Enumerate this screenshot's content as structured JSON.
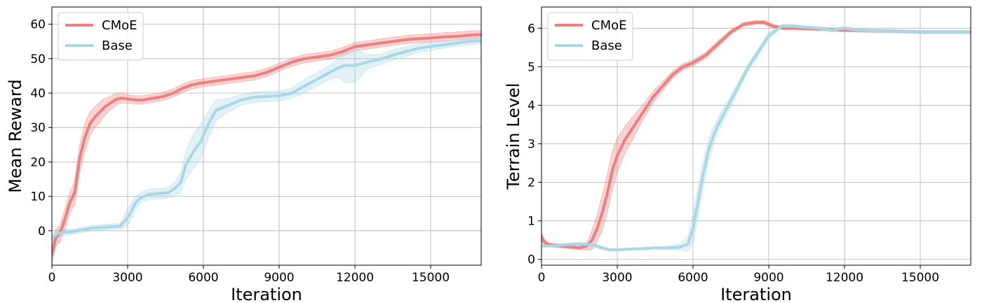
{
  "chart_data": [
    {
      "type": "line",
      "xlabel": "Iteration",
      "ylabel": "Mean Reward",
      "xlim": [
        0,
        17000
      ],
      "ylim": [
        -10,
        65
      ],
      "xticks": [
        0,
        3000,
        6000,
        9000,
        12000,
        15000
      ],
      "yticks": [
        0,
        10,
        20,
        30,
        40,
        50,
        60
      ],
      "grid": true,
      "legend": "top-left",
      "series": [
        {
          "name": "CMoE",
          "color": "#ef7f7f",
          "x": [
            0,
            150,
            300,
            500,
            700,
            900,
            1100,
            1300,
            1500,
            1700,
            1900,
            2100,
            2300,
            2500,
            2700,
            2800,
            3000,
            3300,
            3600,
            4000,
            4400,
            4800,
            5200,
            5600,
            6000,
            6500,
            7000,
            7500,
            8000,
            8500,
            9000,
            9500,
            10000,
            10500,
            11000,
            11500,
            12000,
            12500,
            13000,
            13500,
            14000,
            14500,
            15000,
            15500,
            16000,
            16500,
            17000
          ],
          "y": [
            -7,
            -2,
            -1,
            3,
            8,
            11,
            21,
            27,
            31,
            33,
            34.5,
            36,
            37,
            38,
            38.5,
            38.5,
            38.3,
            38,
            38,
            38.5,
            39,
            40,
            41.5,
            42.5,
            43,
            43.5,
            44,
            44.5,
            45,
            46,
            47.5,
            49,
            50,
            50.5,
            51,
            52,
            53.5,
            54,
            54.5,
            55,
            55.5,
            55.8,
            56,
            56.3,
            56.5,
            56.8,
            57
          ],
          "band": [
            3,
            2.5,
            2.5,
            3,
            3,
            3.5,
            4,
            4,
            3.5,
            3,
            3,
            2.5,
            2,
            1.8,
            1.5,
            1.5,
            1.2,
            1.2,
            1.2,
            1.2,
            1.2,
            1.2,
            1.2,
            1.2,
            1.2,
            1.2,
            1.2,
            1.2,
            1.2,
            1.2,
            1.2,
            1.2,
            1.2,
            1.2,
            1.2,
            1.2,
            1.2,
            1.2,
            1.2,
            1.2,
            1.2,
            1.2,
            1.2,
            1.2,
            1.2,
            1.2,
            1.2
          ]
        },
        {
          "name": "Base",
          "color": "#a8d8e6",
          "x": [
            0,
            200,
            400,
            800,
            1200,
            1600,
            2000,
            2400,
            2700,
            2900,
            3100,
            3300,
            3500,
            3800,
            4200,
            4600,
            4900,
            5100,
            5300,
            5600,
            5900,
            6200,
            6500,
            7000,
            7500,
            8000,
            8500,
            9000,
            9500,
            10000,
            10500,
            11000,
            11400,
            11600,
            12000,
            12500,
            13000,
            13500,
            14000,
            14500,
            15000,
            15500,
            16000,
            16500,
            17000
          ],
          "y": [
            -2,
            -1,
            -0.5,
            -0.3,
            0.3,
            0.8,
            1,
            1.2,
            1.3,
            3,
            5,
            8,
            9.5,
            10.5,
            10.8,
            11,
            12.5,
            14,
            19,
            23,
            26,
            31,
            35,
            36.5,
            38,
            38.8,
            39,
            39.2,
            40,
            42,
            44,
            46,
            47.5,
            48,
            48,
            49,
            49.8,
            51,
            52,
            53,
            53.5,
            54,
            54.5,
            55,
            55.2
          ],
          "band": [
            1,
            1,
            1,
            0.8,
            0.8,
            0.8,
            0.8,
            0.8,
            0.8,
            2,
            2.5,
            2,
            1.5,
            1.5,
            1.5,
            1.5,
            2,
            3,
            4,
            5,
            5,
            4,
            3,
            2,
            1.5,
            1.5,
            1.5,
            1.5,
            1.5,
            2,
            2,
            2,
            3,
            5,
            5,
            2,
            1.5,
            1.5,
            1.5,
            1.2,
            1.2,
            1,
            1,
            1,
            1
          ]
        }
      ]
    },
    {
      "type": "line",
      "xlabel": "Iteration",
      "ylabel": "Terrain Level",
      "xlim": [
        0,
        17000
      ],
      "ylim": [
        -0.15,
        6.55
      ],
      "xticks": [
        0,
        3000,
        6000,
        9000,
        12000,
        15000
      ],
      "yticks": [
        0,
        1,
        2,
        3,
        4,
        5,
        6
      ],
      "grid": true,
      "legend": "top-left",
      "series": [
        {
          "name": "CMoE",
          "color": "#ef7f7f",
          "x": [
            0,
            100,
            300,
            700,
            1100,
            1500,
            1800,
            2000,
            2200,
            2400,
            2600,
            2800,
            3000,
            3300,
            3600,
            4000,
            4400,
            4800,
            5200,
            5600,
            6000,
            6500,
            7000,
            7500,
            8000,
            8500,
            8800,
            9200,
            9600,
            10000,
            11000,
            12000,
            13000,
            14000,
            15000,
            16000,
            17000
          ],
          "y": [
            0.6,
            0.45,
            0.38,
            0.35,
            0.33,
            0.3,
            0.35,
            0.5,
            0.8,
            1.2,
            1.7,
            2.3,
            2.7,
            3.1,
            3.4,
            3.8,
            4.2,
            4.5,
            4.8,
            5.0,
            5.1,
            5.3,
            5.6,
            5.9,
            6.1,
            6.15,
            6.15,
            6.05,
            6.0,
            6.0,
            5.98,
            5.95,
            5.93,
            5.92,
            5.9,
            5.9,
            5.9
          ],
          "band": [
            0.1,
            0.08,
            0.05,
            0.05,
            0.05,
            0.05,
            0.1,
            0.25,
            0.35,
            0.45,
            0.5,
            0.5,
            0.45,
            0.35,
            0.3,
            0.2,
            0.15,
            0.12,
            0.1,
            0.08,
            0.08,
            0.08,
            0.08,
            0.06,
            0.05,
            0.05,
            0.05,
            0.05,
            0.04,
            0.04,
            0.04,
            0.04,
            0.04,
            0.04,
            0.04,
            0.04,
            0.04
          ]
        },
        {
          "name": "Base",
          "color": "#a8d8e6",
          "x": [
            0,
            500,
            1000,
            1500,
            2000,
            2400,
            2700,
            3000,
            3500,
            4000,
            4500,
            5000,
            5500,
            5800,
            6000,
            6200,
            6400,
            6600,
            6800,
            7000,
            7400,
            7800,
            8200,
            8600,
            9000,
            9500,
            10000,
            10500,
            11000,
            11500,
            12000,
            12500,
            13000,
            14000,
            15000,
            16000,
            17000
          ],
          "y": [
            0.35,
            0.35,
            0.38,
            0.4,
            0.38,
            0.3,
            0.25,
            0.25,
            0.27,
            0.28,
            0.3,
            0.3,
            0.32,
            0.4,
            0.8,
            1.5,
            2.2,
            2.8,
            3.2,
            3.5,
            4.0,
            4.5,
            5.0,
            5.4,
            5.8,
            6.05,
            6.05,
            6.02,
            6.0,
            5.95,
            6.0,
            5.95,
            5.93,
            5.92,
            5.9,
            5.9,
            5.9
          ],
          "band": [
            0.03,
            0.03,
            0.04,
            0.05,
            0.05,
            0.04,
            0.03,
            0.03,
            0.03,
            0.03,
            0.03,
            0.04,
            0.08,
            0.2,
            0.4,
            0.4,
            0.35,
            0.3,
            0.25,
            0.2,
            0.15,
            0.12,
            0.1,
            0.1,
            0.08,
            0.05,
            0.05,
            0.04,
            0.04,
            0.05,
            0.05,
            0.04,
            0.04,
            0.04,
            0.04,
            0.04,
            0.04
          ]
        }
      ]
    }
  ]
}
